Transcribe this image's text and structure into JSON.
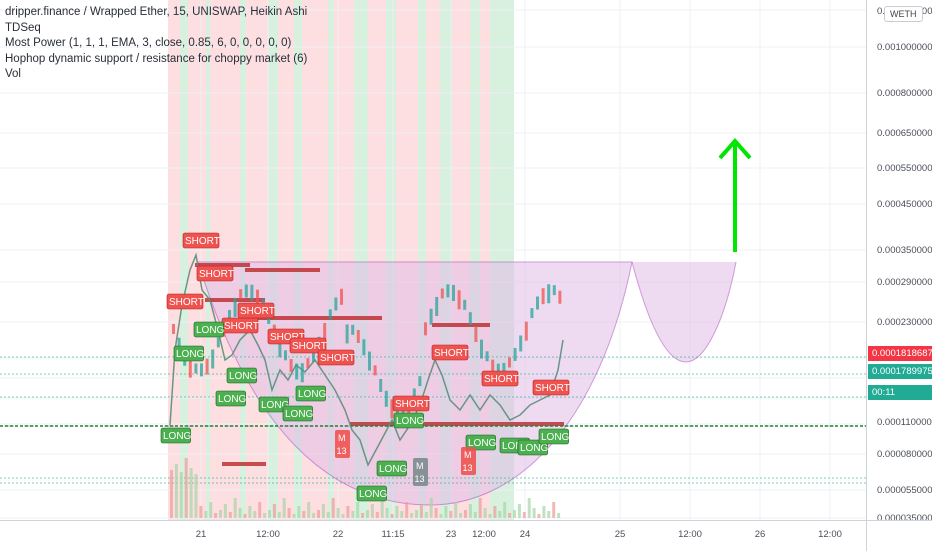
{
  "legend": {
    "title": "dripper.finance / Wrapped Ether, 15, UNISWAP, Heikin Ashi",
    "indicators": [
      "TDSeq",
      "Most Power (1, 1, 1, EMA, 3, close, 0.85, 6, 0, 0, 0, 0, 0)",
      "Hophop dynamic support / resistance for choppy market (6)",
      "Vol"
    ]
  },
  "symbol_button": "WETH",
  "price_axis": [
    "0.0013000000",
    "0.0010000000",
    "0.0008000000",
    "0.0006500000",
    "0.0005500000",
    "0.0004500000",
    "0.0003500000",
    "0.0002900000",
    "0.0002300000",
    "0.0001100000",
    "0.0000800000",
    "0.0000550000",
    "0.0000350000"
  ],
  "price_tags": {
    "current_red": "0.0001818687",
    "current_green": "0.0001789975",
    "countdown": "00:11"
  },
  "time_axis": [
    "21",
    "12:00",
    "22",
    "11:15",
    "23",
    "12:00",
    "24",
    "25",
    "12:00",
    "26",
    "12:00"
  ],
  "signals": {
    "short": "SHORT",
    "long": "LONG",
    "m13": [
      "M",
      "13"
    ]
  },
  "colors": {
    "red": "#f23645",
    "green": "#22ab94",
    "long_bg": "#4caf50",
    "short_bg": "#ef5350",
    "arrow": "#00e600",
    "cup_fill": "#e1bee7",
    "cup_stroke": "#ab47bc",
    "resistance": "#b71c1c"
  }
}
